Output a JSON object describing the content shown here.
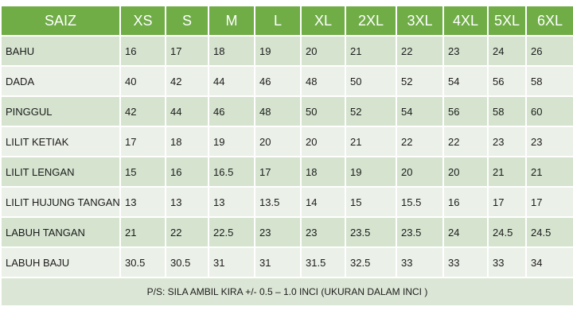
{
  "table": {
    "headers": [
      "SAIZ",
      "XS",
      "S",
      "M",
      "L",
      "XL",
      "2XL",
      "3XL",
      "4XL",
      "5XL",
      "6XL"
    ],
    "rows": [
      {
        "label": "BAHU",
        "values": [
          "16",
          "17",
          "18",
          "19",
          "20",
          "21",
          "22",
          "23",
          "24",
          "26"
        ]
      },
      {
        "label": "DADA",
        "values": [
          "40",
          "42",
          "44",
          "46",
          "48",
          "50",
          "52",
          "54",
          "56",
          "58"
        ]
      },
      {
        "label": "PINGGUL",
        "values": [
          "42",
          "44",
          "46",
          "48",
          "50",
          "52",
          "54",
          "56",
          "58",
          "60"
        ]
      },
      {
        "label": "LILIT KETIAK",
        "values": [
          "17",
          "18",
          "19",
          "20",
          "20",
          "21",
          "22",
          "22",
          "23",
          "23"
        ]
      },
      {
        "label": "LILIT LENGAN",
        "values": [
          "15",
          "16",
          "16.5",
          "17",
          "18",
          "19",
          "20",
          "20",
          "21",
          "21"
        ]
      },
      {
        "label": "LILIT HUJUNG TANGAN",
        "values": [
          "13",
          "13",
          "13",
          "13.5",
          "14",
          "15",
          "15.5",
          "16",
          "17",
          "17"
        ]
      },
      {
        "label": "LABUH TANGAN",
        "values": [
          "21",
          "22",
          "22.5",
          "23",
          "23",
          "23.5",
          "23.5",
          "24",
          "24.5",
          "24.5"
        ]
      },
      {
        "label": "LABUH BAJU",
        "values": [
          "30.5",
          "30.5",
          "31",
          "31",
          "31.5",
          "32.5",
          "33",
          "33",
          "33",
          "34"
        ]
      }
    ],
    "footnote": "P/S: SILA AMBIL KIRA +/- 0.5 – 1.0 INCI (UKURAN DALAM INCI )"
  },
  "colors": {
    "header": "#70ad47",
    "row_dark": "#d5e3cf",
    "row_light": "#ebf0e8"
  }
}
